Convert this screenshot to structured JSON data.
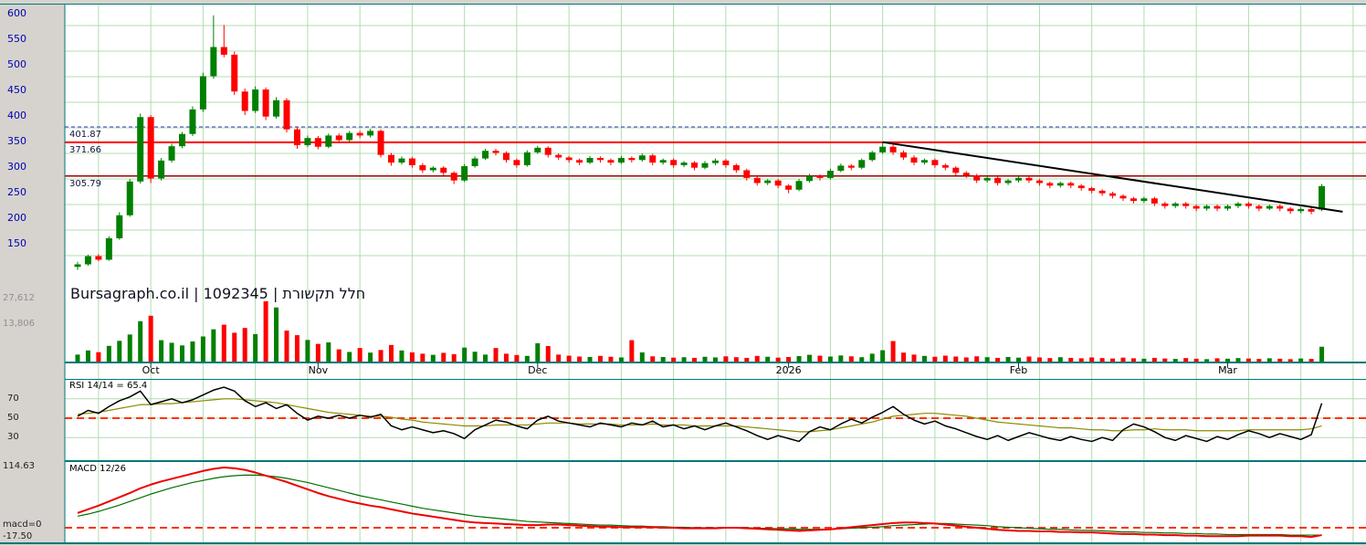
{
  "header": {
    "title": "Bursagraph.co.il | 1092345 | חלל תקשורת"
  },
  "colors": {
    "background": "#d6d3ce",
    "plot_bg": "#ffffff",
    "grid": "#b0dcb0",
    "panel_border": "#007878",
    "axis_text": "#0000b0",
    "up": "#008000",
    "down": "#ff0000",
    "trendline": "#000000",
    "rsi_line": "#000000",
    "rsi_signal": "#8b8b00",
    "macd_line": "#ee0000",
    "macd_signal": "#007000",
    "dashed_level": "#ff3300",
    "ref_blue": "#3a3acc",
    "ref_red": "#ff0000",
    "ref_maroon": "#990000"
  },
  "chart_data": {
    "type": "candlestick",
    "title": "Bursagraph.co.il | 1092345 | חלל תקשורת",
    "x_axis": {
      "month_ticks": [
        {
          "index": 7,
          "label": "Oct"
        },
        {
          "index": 23,
          "label": "Nov"
        },
        {
          "index": 44,
          "label": "Dec"
        },
        {
          "index": 68,
          "label": "2026"
        },
        {
          "index": 90,
          "label": "Feb"
        },
        {
          "index": 110,
          "label": "Mar"
        }
      ]
    },
    "price_panel": {
      "ylim": [
        100,
        640
      ],
      "y_ticks": [
        600,
        550,
        500,
        450,
        400,
        350,
        300,
        250,
        200,
        150
      ],
      "reference_lines": [
        {
          "label": "401.87",
          "value": 401.87,
          "style": "dashed",
          "color": "#3a3acc",
          "width": 1
        },
        {
          "label": "371.66",
          "value": 371.66,
          "style": "solid",
          "color": "#ff0000",
          "width": 2
        },
        {
          "label": "305.79",
          "value": 305.79,
          "style": "solid",
          "color": "#990000",
          "width": 1.5
        }
      ],
      "trendline": {
        "from_index": 77,
        "from_price": 372,
        "to_index": 121,
        "to_price": 236
      },
      "candles": [
        [
          128,
          138,
          122,
          133
        ],
        [
          133,
          152,
          130,
          149
        ],
        [
          149,
          153,
          139,
          142
        ],
        [
          142,
          188,
          140,
          184
        ],
        [
          184,
          235,
          181,
          229
        ],
        [
          229,
          300,
          226,
          295
        ],
        [
          295,
          428,
          291,
          421
        ],
        [
          421,
          425,
          292,
          301
        ],
        [
          301,
          341,
          297,
          336
        ],
        [
          336,
          369,
          332,
          364
        ],
        [
          364,
          392,
          360,
          388
        ],
        [
          388,
          442,
          384,
          436
        ],
        [
          436,
          508,
          431,
          501
        ],
        [
          501,
          620,
          496,
          558
        ],
        [
          558,
          601,
          538,
          543
        ],
        [
          543,
          549,
          464,
          471
        ],
        [
          471,
          477,
          425,
          433
        ],
        [
          433,
          481,
          429,
          475
        ],
        [
          475,
          479,
          415,
          422
        ],
        [
          422,
          460,
          418,
          454
        ],
        [
          454,
          458,
          391,
          397
        ],
        [
          397,
          402,
          359,
          366
        ],
        [
          366,
          385,
          362,
          380
        ],
        [
          380,
          384,
          358,
          363
        ],
        [
          363,
          389,
          360,
          385
        ],
        [
          385,
          389,
          371,
          376
        ],
        [
          376,
          394,
          373,
          390
        ],
        [
          390,
          394,
          380,
          385
        ],
        [
          385,
          398,
          381,
          394
        ],
        [
          394,
          397,
          342,
          347
        ],
        [
          347,
          351,
          326,
          332
        ],
        [
          332,
          344,
          328,
          340
        ],
        [
          340,
          343,
          322,
          327
        ],
        [
          327,
          331,
          312,
          317
        ],
        [
          317,
          325,
          313,
          322
        ],
        [
          322,
          325,
          307,
          312
        ],
        [
          312,
          315,
          290,
          297
        ],
        [
          297,
          329,
          294,
          325
        ],
        [
          325,
          344,
          322,
          340
        ],
        [
          340,
          359,
          337,
          355
        ],
        [
          355,
          359,
          346,
          351
        ],
        [
          351,
          354,
          332,
          337
        ],
        [
          337,
          340,
          322,
          327
        ],
        [
          327,
          356,
          324,
          352
        ],
        [
          352,
          365,
          349,
          361
        ],
        [
          361,
          364,
          342,
          347
        ],
        [
          347,
          350,
          337,
          342
        ],
        [
          342,
          345,
          332,
          337
        ],
        [
          337,
          340,
          327,
          332
        ],
        [
          332,
          345,
          329,
          341
        ],
        [
          341,
          344,
          332,
          337
        ],
        [
          337,
          340,
          327,
          332
        ],
        [
          332,
          345,
          329,
          341
        ],
        [
          341,
          344,
          332,
          337
        ],
        [
          337,
          350,
          334,
          346
        ],
        [
          346,
          349,
          327,
          332
        ],
        [
          332,
          340,
          328,
          337
        ],
        [
          337,
          340,
          322,
          327
        ],
        [
          327,
          335,
          323,
          332
        ],
        [
          332,
          335,
          317,
          322
        ],
        [
          322,
          335,
          319,
          331
        ],
        [
          331,
          340,
          327,
          336
        ],
        [
          336,
          339,
          322,
          327
        ],
        [
          327,
          330,
          312,
          317
        ],
        [
          317,
          320,
          297,
          302
        ],
        [
          302,
          305,
          287,
          292
        ],
        [
          292,
          300,
          288,
          297
        ],
        [
          297,
          300,
          282,
          287
        ],
        [
          287,
          290,
          272,
          279
        ],
        [
          279,
          300,
          276,
          296
        ],
        [
          296,
          310,
          293,
          306
        ],
        [
          306,
          309,
          297,
          302
        ],
        [
          302,
          320,
          299,
          316
        ],
        [
          316,
          330,
          313,
          326
        ],
        [
          326,
          329,
          317,
          322
        ],
        [
          322,
          340,
          319,
          337
        ],
        [
          337,
          355,
          334,
          352
        ],
        [
          352,
          372,
          349,
          363
        ],
        [
          363,
          367,
          347,
          352
        ],
        [
          352,
          356,
          337,
          342
        ],
        [
          342,
          346,
          327,
          332
        ],
        [
          332,
          340,
          328,
          337
        ],
        [
          337,
          340,
          322,
          327
        ],
        [
          327,
          330,
          317,
          322
        ],
        [
          322,
          325,
          307,
          312
        ],
        [
          312,
          315,
          302,
          307
        ],
        [
          307,
          310,
          292,
          297
        ],
        [
          297,
          305,
          293,
          302
        ],
        [
          302,
          305,
          287,
          292
        ],
        [
          292,
          300,
          288,
          297
        ],
        [
          297,
          305,
          293,
          302
        ],
        [
          302,
          305,
          292,
          297
        ],
        [
          297,
          300,
          287,
          292
        ],
        [
          292,
          295,
          282,
          287
        ],
        [
          287,
          295,
          283,
          292
        ],
        [
          292,
          295,
          282,
          287
        ],
        [
          287,
          290,
          277,
          282
        ],
        [
          282,
          285,
          272,
          277
        ],
        [
          277,
          280,
          267,
          272
        ],
        [
          272,
          275,
          262,
          267
        ],
        [
          267,
          270,
          257,
          262
        ],
        [
          262,
          265,
          252,
          257
        ],
        [
          257,
          265,
          253,
          262
        ],
        [
          262,
          265,
          247,
          252
        ],
        [
          252,
          255,
          242,
          247
        ],
        [
          247,
          255,
          243,
          252
        ],
        [
          252,
          255,
          242,
          247
        ],
        [
          247,
          250,
          237,
          242
        ],
        [
          242,
          250,
          238,
          247
        ],
        [
          247,
          250,
          237,
          242
        ],
        [
          242,
          250,
          238,
          247
        ],
        [
          247,
          255,
          243,
          252
        ],
        [
          252,
          255,
          242,
          247
        ],
        [
          247,
          250,
          237,
          242
        ],
        [
          242,
          250,
          239,
          247
        ],
        [
          247,
          250,
          237,
          242
        ],
        [
          242,
          245,
          232,
          237
        ],
        [
          237,
          245,
          233,
          241
        ],
        [
          241,
          244,
          231,
          236
        ],
        [
          240,
          290,
          237,
          286
        ]
      ]
    },
    "volume_panel": {
      "scale_labels": [
        "27,612",
        "13,806"
      ],
      "scale_values": [
        27612,
        13806
      ],
      "volumes": [
        3200,
        5100,
        4300,
        7200,
        9500,
        12400,
        18500,
        21000,
        9800,
        8600,
        7400,
        9200,
        11500,
        14800,
        16900,
        13200,
        15400,
        12600,
        27612,
        24800,
        14200,
        12100,
        9900,
        8100,
        8800,
        5600,
        4400,
        6200,
        4100,
        5300,
        7600,
        5100,
        4200,
        3600,
        3100,
        4000,
        3400,
        6400,
        4500,
        3200,
        6200,
        3600,
        3000,
        2600,
        8400,
        7100,
        3200,
        2700,
        2300,
        2100,
        2600,
        2200,
        1900,
        9800,
        4200,
        2400,
        2100,
        1800,
        2000,
        1700,
        2200,
        1900,
        2400,
        2000,
        1700,
        2600,
        2200,
        1800,
        2100,
        2500,
        3100,
        2700,
        2300,
        2800,
        2400,
        2000,
        3600,
        5200,
        9400,
        4100,
        3200,
        2600,
        2200,
        2700,
        2300,
        1900,
        2400,
        2000,
        1700,
        2100,
        1800,
        2300,
        1900,
        1600,
        2000,
        1700,
        1500,
        1900,
        1600,
        1400,
        1800,
        1500,
        1300,
        1700,
        1400,
        1200,
        1600,
        1300,
        1100,
        1500,
        1300,
        1600,
        1400,
        1200,
        1500,
        1300,
        1100,
        1400,
        1200,
        6800
      ]
    },
    "rsi_panel": {
      "label": "RSI 14/14 = 65.4",
      "period": "14/14",
      "current": 65.4,
      "ticks": [
        70,
        50,
        30
      ],
      "mid_level": 50,
      "values": [
        52,
        58,
        55,
        62,
        68,
        72,
        78,
        64,
        67,
        70,
        66,
        69,
        74,
        79,
        82,
        78,
        68,
        62,
        66,
        60,
        64,
        55,
        48,
        52,
        50,
        53,
        50,
        53,
        51,
        54,
        42,
        38,
        41,
        38,
        35,
        37,
        34,
        29,
        38,
        43,
        48,
        46,
        42,
        39,
        48,
        52,
        47,
        45,
        43,
        41,
        45,
        43,
        41,
        45,
        43,
        47,
        41,
        43,
        39,
        42,
        38,
        42,
        45,
        41,
        37,
        32,
        28,
        32,
        29,
        26,
        36,
        41,
        38,
        44,
        49,
        45,
        51,
        56,
        62,
        54,
        48,
        44,
        47,
        42,
        39,
        35,
        31,
        28,
        32,
        27,
        31,
        35,
        32,
        29,
        27,
        31,
        28,
        26,
        30,
        27,
        38,
        44,
        41,
        36,
        30,
        27,
        32,
        29,
        26,
        31,
        28,
        33,
        37,
        34,
        30,
        34,
        31,
        28,
        33,
        65.4
      ],
      "signal": [
        54,
        55,
        56,
        58,
        60,
        62,
        64,
        64,
        65,
        65,
        66,
        67,
        68,
        69,
        70,
        70,
        69,
        68,
        67,
        66,
        64,
        62,
        60,
        58,
        56,
        55,
        54,
        53,
        52,
        52,
        51,
        49,
        48,
        46,
        45,
        44,
        43,
        42,
        42,
        42,
        43,
        43,
        43,
        43,
        44,
        45,
        45,
        45,
        44,
        44,
        44,
        44,
        43,
        43,
        43,
        44,
        43,
        43,
        43,
        42,
        42,
        42,
        42,
        42,
        41,
        40,
        39,
        38,
        37,
        36,
        36,
        37,
        38,
        40,
        42,
        44,
        46,
        49,
        52,
        53,
        54,
        55,
        55,
        54,
        53,
        52,
        50,
        48,
        46,
        45,
        44,
        43,
        42,
        41,
        40,
        40,
        39,
        38,
        38,
        37,
        37,
        38,
        38,
        39,
        38,
        38,
        38,
        37,
        37,
        37,
        37,
        37,
        38,
        38,
        38,
        38,
        38,
        38,
        39,
        42
      ]
    },
    "macd_panel": {
      "label": "MACD 12/26",
      "max_label": "114.63",
      "zero_label": "macd=0",
      "min_label": "-17.50",
      "max_value": 114.63,
      "min_value": -17.5,
      "macd": [
        28,
        35,
        42,
        50,
        58,
        66,
        75,
        82,
        88,
        93,
        98,
        103,
        108,
        112,
        114.6,
        113,
        110,
        105,
        99,
        93,
        87,
        80,
        73,
        66,
        60,
        55,
        50,
        46,
        42,
        39,
        35,
        31,
        27,
        24,
        21,
        18,
        15,
        12,
        10,
        9,
        8,
        7,
        6,
        5,
        5,
        6,
        6,
        5,
        4,
        3,
        2,
        2,
        1,
        1,
        1,
        1,
        0,
        0,
        -1,
        -1,
        -1,
        -1,
        0,
        0,
        -1,
        -2,
        -3,
        -4,
        -5,
        -6,
        -5,
        -4,
        -3,
        -1,
        1,
        3,
        5,
        7,
        9,
        10,
        10,
        9,
        8,
        6,
        4,
        2,
        0,
        -2,
        -4,
        -5,
        -6,
        -6,
        -7,
        -7,
        -8,
        -8,
        -9,
        -9,
        -10,
        -11,
        -12,
        -12,
        -13,
        -13,
        -14,
        -14,
        -15,
        -15,
        -16,
        -16,
        -16,
        -16,
        -15,
        -15,
        -15,
        -15,
        -16,
        -16,
        -17.5,
        -14
      ],
      "signal": [
        22,
        26,
        31,
        37,
        43,
        50,
        57,
        64,
        70,
        76,
        81,
        86,
        90,
        94,
        97,
        99,
        100,
        100,
        99,
        97,
        94,
        90,
        86,
        81,
        76,
        71,
        66,
        61,
        57,
        53,
        49,
        45,
        41,
        37,
        34,
        31,
        28,
        25,
        22,
        20,
        18,
        16,
        14,
        12,
        11,
        10,
        9,
        8,
        7,
        6,
        5,
        5,
        4,
        3,
        3,
        2,
        2,
        1,
        1,
        0,
        0,
        0,
        0,
        0,
        0,
        -1,
        -1,
        -2,
        -2,
        -3,
        -3,
        -3,
        -3,
        -2,
        -1,
        0,
        1,
        2,
        4,
        5,
        6,
        7,
        8,
        8,
        7,
        6,
        5,
        4,
        2,
        1,
        0,
        -1,
        -2,
        -3,
        -3,
        -4,
        -5,
        -5,
        -6,
        -7,
        -8,
        -8,
        -9,
        -9,
        -10,
        -10,
        -11,
        -11,
        -12,
        -12,
        -13,
        -13,
        -13,
        -13,
        -13,
        -13,
        -14,
        -14,
        -14,
        -14
      ]
    }
  }
}
